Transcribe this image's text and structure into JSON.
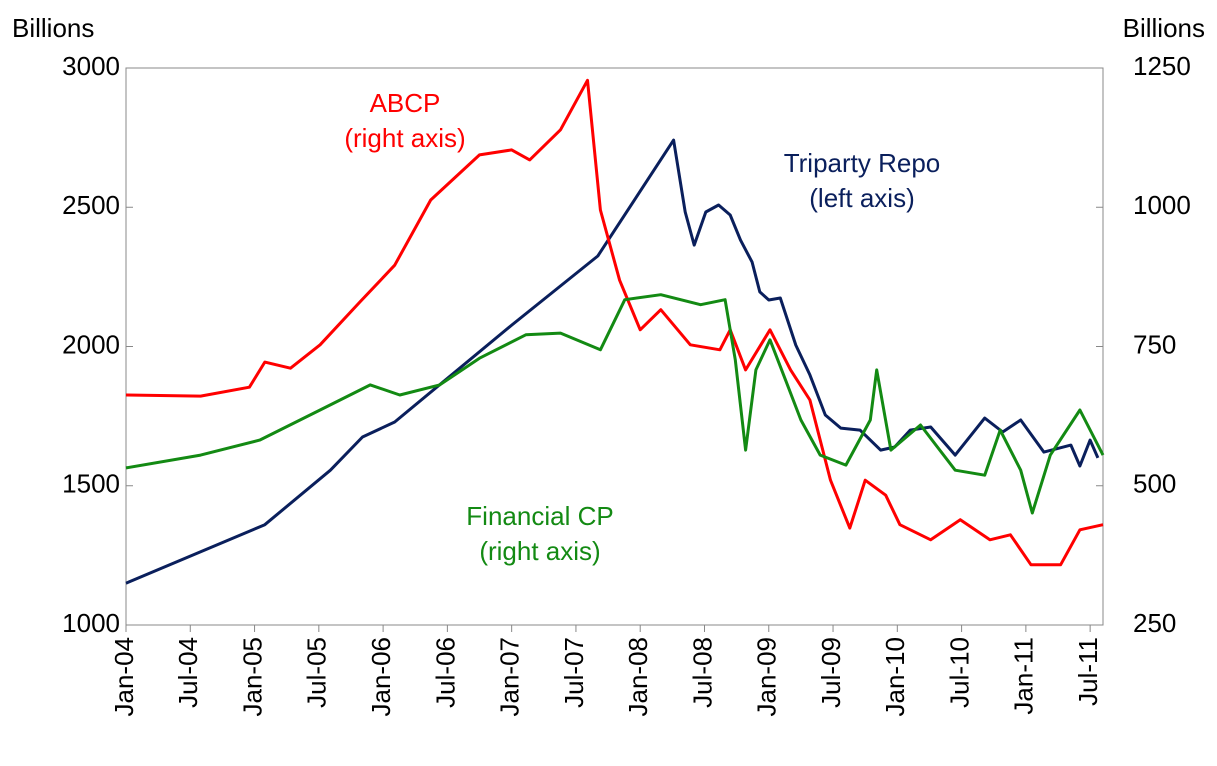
{
  "chart_data": {
    "type": "line",
    "y_label": "Billions",
    "y2_label": "Billions",
    "xlim": [
      2004,
      2011.6
    ],
    "xticks": [
      {
        "value": 2004,
        "label": "Jan-04"
      },
      {
        "value": 2004.5,
        "label": "Jul-04"
      },
      {
        "value": 2005,
        "label": "Jan-05"
      },
      {
        "value": 2005.5,
        "label": "Jul-05"
      },
      {
        "value": 2006,
        "label": "Jan-06"
      },
      {
        "value": 2006.5,
        "label": "Jul-06"
      },
      {
        "value": 2007,
        "label": "Jan-07"
      },
      {
        "value": 2007.5,
        "label": "Jul-07"
      },
      {
        "value": 2008,
        "label": "Jan-08"
      },
      {
        "value": 2008.5,
        "label": "Jul-08"
      },
      {
        "value": 2009,
        "label": "Jan-09"
      },
      {
        "value": 2009.5,
        "label": "Jul-09"
      },
      {
        "value": 2010,
        "label": "Jan-10"
      },
      {
        "value": 2010.5,
        "label": "Jul-10"
      },
      {
        "value": 2011,
        "label": "Jan-11"
      },
      {
        "value": 2011.5,
        "label": "Jul-11"
      }
    ],
    "ylim": [
      1000,
      3000
    ],
    "yticks": [
      1000,
      1500,
      2000,
      2500,
      3000
    ],
    "y2lim": [
      250,
      1250
    ],
    "y2ticks": [
      250,
      500,
      750,
      1000,
      1250
    ],
    "series": [
      {
        "name": "Triparty Repo",
        "color": "#0a1f5c",
        "axis": "y",
        "x": [
          2004.0,
          2005.08,
          2005.59,
          2005.84,
          2006.09,
          2007.0,
          2007.67,
          2008.26,
          2008.35,
          2008.42,
          2008.51,
          2008.61,
          2008.7,
          2008.78,
          2008.87,
          2008.93,
          2009.0,
          2009.09,
          2009.21,
          2009.32,
          2009.44,
          2009.56,
          2009.71,
          2009.87,
          2009.98,
          2010.1,
          2010.26,
          2010.45,
          2010.68,
          2010.82,
          2010.96,
          2011.14,
          2011.35,
          2011.42,
          2011.5,
          2011.56
        ],
        "values": [
          1150,
          1360,
          1556,
          1675,
          1729,
          2077,
          2325,
          2741,
          2483,
          2364,
          2483,
          2508,
          2472,
          2382,
          2303,
          2196,
          2167,
          2174,
          2005,
          1898,
          1754,
          1707,
          1700,
          1628,
          1639,
          1700,
          1711,
          1610,
          1743,
          1693,
          1736,
          1621,
          1646,
          1571,
          1664,
          1600
        ]
      },
      {
        "name": "ABCP",
        "color": "#ff0000",
        "axis": "y2",
        "x": [
          2004.0,
          2004.58,
          2004.96,
          2005.08,
          2005.28,
          2005.51,
          2005.82,
          2006.09,
          2006.37,
          2006.75,
          2007.0,
          2007.14,
          2007.38,
          2007.59,
          2007.69,
          2007.84,
          2008.0,
          2008.16,
          2008.39,
          2008.62,
          2008.7,
          2008.82,
          2009.01,
          2009.17,
          2009.32,
          2009.48,
          2009.63,
          2009.75,
          2009.91,
          2010.02,
          2010.26,
          2010.49,
          2010.72,
          2010.88,
          2011.04,
          2011.27,
          2011.42,
          2011.6
        ],
        "values": [
          663,
          661,
          677,
          722,
          711,
          753,
          830,
          896,
          1013,
          1094,
          1103,
          1085,
          1139,
          1228,
          995,
          869,
          780,
          816,
          753,
          744,
          780,
          708,
          780,
          708,
          654,
          510,
          424,
          510,
          483,
          430,
          403,
          439,
          403,
          412,
          358,
          358,
          421,
          430
        ]
      },
      {
        "name": "Financial CP",
        "color": "#138a13",
        "axis": "y2",
        "x": [
          2004.0,
          2004.58,
          2005.04,
          2005.51,
          2005.9,
          2006.13,
          2006.44,
          2006.75,
          2007.11,
          2007.38,
          2007.69,
          2007.88,
          2008.16,
          2008.47,
          2008.66,
          2008.74,
          2008.82,
          2008.9,
          2009.01,
          2009.13,
          2009.25,
          2009.4,
          2009.6,
          2009.79,
          2009.84,
          2009.95,
          2010.18,
          2010.45,
          2010.68,
          2010.8,
          2010.96,
          2011.05,
          2011.19,
          2011.42,
          2011.6
        ],
        "values": [
          532,
          555,
          582,
          636,
          681,
          663,
          681,
          729,
          771,
          774,
          744,
          834,
          843,
          825,
          834,
          726,
          564,
          708,
          762,
          690,
          618,
          555,
          537,
          618,
          708,
          564,
          609,
          528,
          519,
          600,
          528,
          451,
          555,
          636,
          555
        ]
      }
    ],
    "annotations": [
      {
        "text": [
          "ABCP",
          "(right axis)"
        ],
        "color": "#ff0000"
      },
      {
        "text": [
          "Triparty Repo",
          "(left axis)"
        ],
        "color": "#0a1f5c"
      },
      {
        "text": [
          "Financial CP",
          "(right axis)"
        ],
        "color": "#138a13"
      }
    ]
  }
}
